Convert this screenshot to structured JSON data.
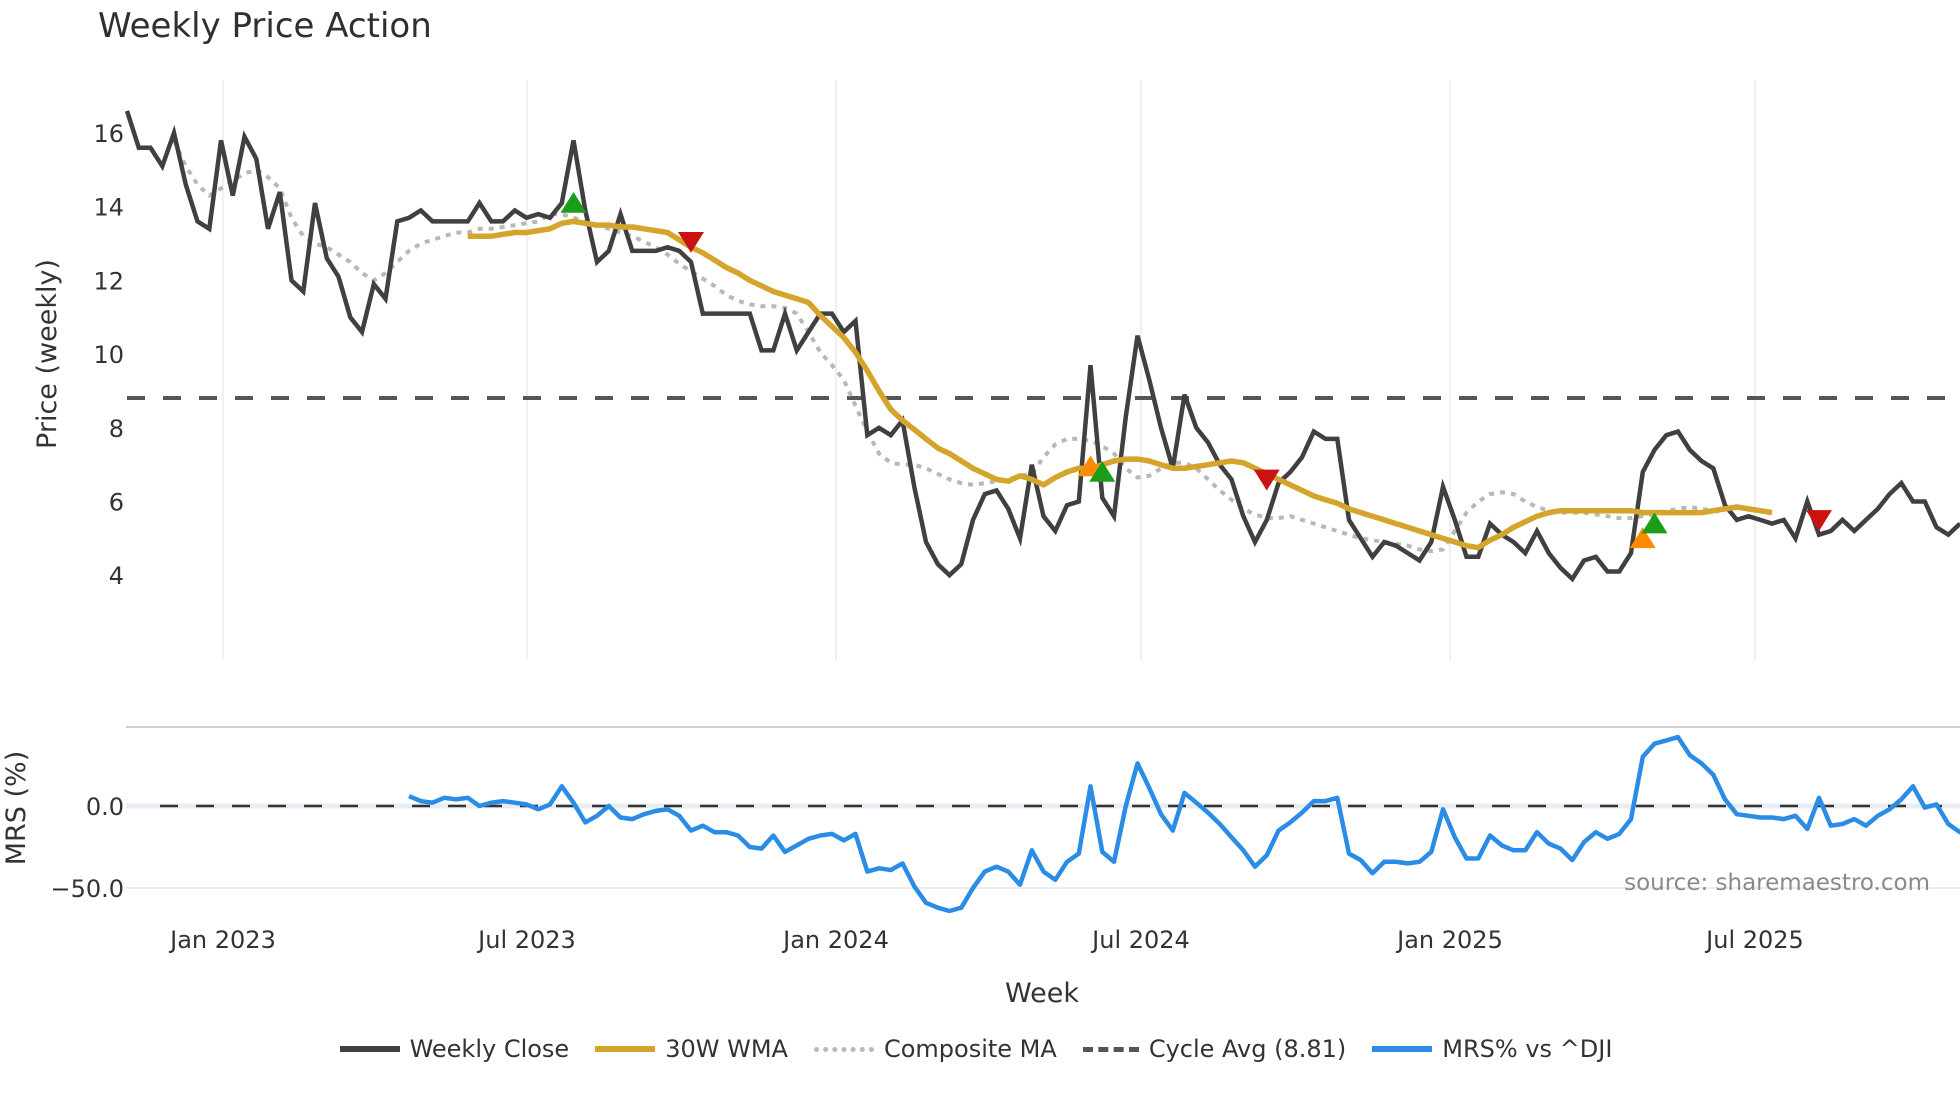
{
  "title": "Weekly Price Action",
  "source_note": "source: sharemaestro.com",
  "legend": [
    {
      "key": "close",
      "label": "Weekly Close",
      "color": "#404040",
      "style": "solid"
    },
    {
      "key": "wma",
      "label": "30W WMA",
      "color": "#d4a52a",
      "style": "solid"
    },
    {
      "key": "comp",
      "label": "Composite MA",
      "color": "#b8b8b8",
      "style": "dotted"
    },
    {
      "key": "cycle",
      "label": "Cycle Avg (8.81)",
      "color": "#555555",
      "style": "dashed"
    },
    {
      "key": "mrs",
      "label": "MRS% vs ^DJI",
      "color": "#2b8ce6",
      "style": "solid"
    }
  ],
  "chart_data": [
    {
      "type": "line",
      "title": "Weekly Price Action",
      "xlabel": "Week",
      "ylabel": "Price (weekly)",
      "x_ticks": [
        "Jan 2023",
        "Jul 2023",
        "Jan 2024",
        "Jul 2024",
        "Jan 2025",
        "Jul 2025"
      ],
      "y_ticks": [
        4,
        6,
        8,
        10,
        12,
        14,
        16
      ],
      "ylim": [
        3.3,
        17.2
      ],
      "grid": "vertical",
      "x_start": "2022-11 (approx)",
      "cycle_avg": 8.81,
      "series": [
        {
          "name": "Weekly Close",
          "color": "#404040",
          "values": [
            16.6,
            15.6,
            15.6,
            15.1,
            16.0,
            14.6,
            13.6,
            13.4,
            15.8,
            14.3,
            15.9,
            15.3,
            13.4,
            14.4,
            12.0,
            11.7,
            14.1,
            12.6,
            12.1,
            11.0,
            10.6,
            11.9,
            11.5,
            13.6,
            13.7,
            13.9,
            13.6,
            13.6,
            13.6,
            13.6,
            14.1,
            13.6,
            13.6,
            13.9,
            13.7,
            13.8,
            13.7,
            14.1,
            15.8,
            13.9,
            12.5,
            12.8,
            13.8,
            12.8,
            12.8,
            12.8,
            12.9,
            12.8,
            12.5,
            11.1,
            11.1,
            11.1,
            11.1,
            11.1,
            10.1,
            10.1,
            11.1,
            10.1,
            10.6,
            11.1,
            11.1,
            10.6,
            10.9,
            7.8,
            8.0,
            7.8,
            8.2,
            6.4,
            4.9,
            4.3,
            4.0,
            4.3,
            5.5,
            6.2,
            6.3,
            5.8,
            5.0,
            7.0,
            5.6,
            5.2,
            5.9,
            6.0,
            9.7,
            6.1,
            5.6,
            8.3,
            10.5,
            9.3,
            8.0,
            6.9,
            8.9,
            8.0,
            7.6,
            7.0,
            6.6,
            5.6,
            4.9,
            5.5,
            6.5,
            6.8,
            7.2,
            7.9,
            7.7,
            7.7,
            5.5,
            5.0,
            4.5,
            4.9,
            4.8,
            4.6,
            4.4,
            4.9,
            6.4,
            5.5,
            4.5,
            4.5,
            5.4,
            5.1,
            4.9,
            4.6,
            5.2,
            4.6,
            4.2,
            3.9,
            4.4,
            4.5,
            4.1,
            4.1,
            4.6,
            6.8,
            7.4,
            7.8,
            7.9,
            7.4,
            7.1,
            6.9,
            5.9,
            5.5,
            5.6,
            5.5,
            5.4,
            5.5,
            5.0,
            6.0,
            5.1,
            5.2,
            5.5,
            5.2,
            5.5,
            5.8,
            6.2,
            6.5,
            6.0,
            6.0,
            5.3,
            5.1,
            5.4
          ]
        },
        {
          "name": "30W WMA",
          "color": "#d4a52a",
          "start_index": 29,
          "values": [
            13.2,
            13.2,
            13.2,
            13.25,
            13.3,
            13.3,
            13.35,
            13.4,
            13.55,
            13.6,
            13.55,
            13.5,
            13.5,
            13.45,
            13.45,
            13.4,
            13.35,
            13.3,
            13.1,
            12.9,
            12.75,
            12.55,
            12.35,
            12.2,
            12.0,
            11.85,
            11.7,
            11.6,
            11.5,
            11.4,
            11.05,
            10.75,
            10.45,
            10.05,
            9.55,
            9.0,
            8.5,
            8.2,
            7.95,
            7.7,
            7.45,
            7.3,
            7.1,
            6.9,
            6.75,
            6.6,
            6.55,
            6.7,
            6.6,
            6.45,
            6.65,
            6.8,
            6.9,
            6.9,
            7.0,
            7.1,
            7.15,
            7.15,
            7.1,
            7.0,
            6.9,
            6.9,
            6.95,
            7.0,
            7.05,
            7.1,
            7.05,
            6.9,
            6.75,
            6.6,
            6.45,
            6.3,
            6.15,
            6.05,
            5.95,
            5.8,
            5.7,
            5.6,
            5.5,
            5.4,
            5.3,
            5.2,
            5.1,
            5.0,
            4.9,
            4.8,
            4.75,
            4.95,
            5.1,
            5.3,
            5.45,
            5.6,
            5.7,
            5.75,
            5.75,
            5.75,
            5.75,
            5.75,
            5.75,
            5.75,
            5.7,
            5.7,
            5.7,
            5.7,
            5.7,
            5.7,
            5.75,
            5.8,
            5.85,
            5.8,
            5.75,
            5.7
          ]
        },
        {
          "name": "Composite MA",
          "color": "#b8b8b8",
          "start_index": 4,
          "values": [
            15.8,
            15.1,
            14.6,
            14.3,
            14.5,
            14.7,
            14.9,
            15.0,
            14.8,
            14.5,
            13.7,
            13.2,
            13.0,
            12.9,
            12.7,
            12.5,
            12.2,
            12.0,
            12.2,
            12.5,
            12.8,
            13.0,
            13.1,
            13.2,
            13.3,
            13.3,
            13.4,
            13.4,
            13.45,
            13.5,
            13.55,
            13.6,
            13.8,
            13.8,
            13.7,
            13.6,
            13.5,
            13.4,
            13.3,
            13.2,
            13.05,
            12.9,
            12.7,
            12.45,
            12.25,
            12.05,
            11.85,
            11.6,
            11.45,
            11.35,
            11.3,
            11.3,
            11.25,
            11.1,
            10.6,
            10.05,
            9.7,
            9.3,
            8.6,
            7.9,
            7.3,
            7.05,
            7.0,
            7.0,
            6.9,
            6.75,
            6.6,
            6.5,
            6.45,
            6.5,
            6.55,
            6.6,
            6.7,
            6.75,
            7.2,
            7.55,
            7.7,
            7.7,
            7.65,
            7.5,
            7.3,
            6.9,
            6.65,
            6.7,
            6.9,
            7.05,
            7.05,
            6.9,
            6.6,
            6.3,
            6.05,
            5.8,
            5.65,
            5.55,
            5.55,
            5.6,
            5.5,
            5.4,
            5.3,
            5.2,
            5.1,
            5.0,
            4.95,
            4.9,
            4.85,
            4.8,
            4.7,
            4.65,
            4.7,
            5.2,
            5.7,
            6.0,
            6.2,
            6.25,
            6.2,
            6.0,
            5.85,
            5.75,
            5.7,
            5.7,
            5.7,
            5.65,
            5.6,
            5.55,
            5.55,
            5.6,
            5.65,
            5.75,
            5.8,
            5.85,
            5.8,
            5.75,
            5.7
          ]
        }
      ],
      "markers": [
        {
          "type": "buy",
          "shape": "triangle-up",
          "color": "#1a9e1a",
          "index": 38,
          "value": 14.1
        },
        {
          "type": "sell",
          "shape": "triangle-down",
          "color": "#cc1111",
          "index": 48,
          "value": 13.05
        },
        {
          "type": "caution",
          "shape": "triangle-up",
          "color": "#ff8c00",
          "index": 82,
          "value": 6.95
        },
        {
          "type": "buy",
          "shape": "triangle-up",
          "color": "#1a9e1a",
          "index": 83,
          "value": 6.8
        },
        {
          "type": "sell",
          "shape": "triangle-down",
          "color": "#cc1111",
          "index": 97,
          "value": 6.6
        },
        {
          "type": "caution",
          "shape": "triangle-up",
          "color": "#ff8c00",
          "index": 129,
          "value": 5.0
        },
        {
          "type": "buy",
          "shape": "triangle-up",
          "color": "#1a9e1a",
          "index": 130,
          "value": 5.4
        },
        {
          "type": "sell",
          "shape": "triangle-down",
          "color": "#cc1111",
          "index": 144,
          "value": 5.5
        }
      ]
    },
    {
      "type": "line",
      "ylabel": "MRS (%)",
      "y_ticks": [
        0.0,
        -50.0
      ],
      "y_tick_labels": [
        "0.0",
        "−50.0"
      ],
      "ylim": [
        -72,
        48
      ],
      "zero_line": "dashed",
      "series": [
        {
          "name": "MRS% vs ^DJI",
          "color": "#2b8ce6",
          "start_index": 24,
          "values": [
            6,
            3,
            2,
            5,
            4,
            5,
            0,
            2,
            3,
            2,
            1,
            -2,
            1,
            12,
            2,
            -10,
            -6,
            0,
            -7,
            -8,
            -5,
            -3,
            -2,
            -6,
            -15,
            -12,
            -16,
            -16,
            -18,
            -25,
            -26,
            -18,
            -28,
            -24,
            -20,
            -18,
            -17,
            -21,
            -17,
            -40,
            -38,
            -39,
            -35,
            -49,
            -59,
            -62,
            -64,
            -62,
            -50,
            -40,
            -37,
            -40,
            -48,
            -27,
            -40,
            -45,
            -34,
            -29,
            12,
            -28,
            -34,
            0,
            26,
            11,
            -5,
            -15,
            8,
            2,
            -4,
            -11,
            -19,
            -27,
            -37,
            -30,
            -15,
            -10,
            -4,
            3,
            3,
            5,
            -29,
            -33,
            -41,
            -34,
            -34,
            -35,
            -34,
            -28,
            -2,
            -19,
            -32,
            -32,
            -18,
            -24,
            -27,
            -27,
            -16,
            -23,
            -26,
            -33,
            -22,
            -16,
            -20,
            -17,
            -8,
            30,
            38,
            40,
            42,
            31,
            26,
            19,
            4,
            -5,
            -6,
            -7,
            -7,
            -8,
            -6,
            -14,
            5,
            -12,
            -11,
            -8,
            -12,
            -6,
            -2,
            4,
            12,
            -1,
            1,
            -11,
            -16,
            -10
          ]
        }
      ]
    }
  ],
  "axes": {
    "main_ylabel": "Price (weekly)",
    "mrs_ylabel": "MRS (%)",
    "xlabel": "Week",
    "main_yticks": [
      "16",
      "14",
      "12",
      "10",
      "8",
      "6",
      "4"
    ],
    "mrs_yticks": [
      "0.0",
      "−50.0"
    ],
    "xticks": [
      "Jan 2023",
      "Jul 2023",
      "Jan 2024",
      "Jul 2024",
      "Jan 2025",
      "Jul 2025"
    ]
  }
}
